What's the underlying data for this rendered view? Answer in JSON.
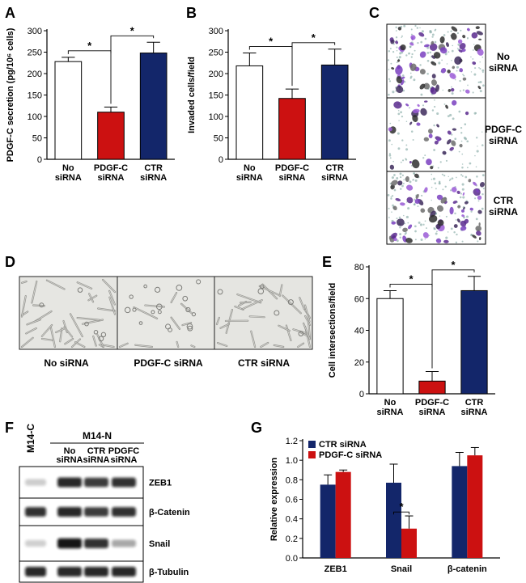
{
  "panel_letters": [
    "A",
    "B",
    "C",
    "D",
    "E",
    "F",
    "G"
  ],
  "colors": {
    "white": "#ffffff",
    "red": "#cc1111",
    "navy": "#13266a",
    "purple": "#7a3fc0",
    "blot": "#111111"
  },
  "panel_c": {
    "labels": [
      "No\nsiRNA",
      "PDGF-C\nsiRNA",
      "CTR\nsiRNA"
    ],
    "description_icon": "invasion-micrograph"
  },
  "panel_d": {
    "labels": [
      "No siRNA",
      "PDGF-C siRNA",
      "CTR siRNA"
    ],
    "description_icon": "tube-formation-micrograph"
  },
  "panel_f": {
    "control_lane": "M14-C",
    "group_label": "M14-N",
    "lane_labels": [
      "No\nsiRNA",
      "CTR\nsiRNA",
      "PDGFC\nsiRNA"
    ],
    "bands": [
      "ZEB1",
      "β-Catenin",
      "Snail",
      "β-Tubulin"
    ],
    "intensities": [
      [
        0.06,
        0.9,
        0.8,
        0.85
      ],
      [
        0.85,
        0.9,
        0.8,
        0.85
      ],
      [
        0.05,
        1.0,
        0.85,
        0.25
      ],
      [
        0.9,
        0.9,
        0.9,
        0.9
      ]
    ]
  },
  "chart_data": [
    {
      "id": "A",
      "type": "bar",
      "categories": [
        "No\nsiRNA",
        "PDGF-C\nsiRNA",
        "CTR\nsiRNA"
      ],
      "values": [
        228,
        110,
        248
      ],
      "errors": [
        10,
        12,
        25
      ],
      "colors": [
        "#ffffff",
        "#cc1111",
        "#13266a"
      ],
      "ylabel": "PDGF-C secretion (pg/10⁶ cells)",
      "ylim": [
        0,
        300
      ],
      "yticks": [
        0,
        50,
        100,
        150,
        200,
        250,
        300
      ],
      "significance": [
        {
          "from": 0,
          "to": 1,
          "label": "*"
        },
        {
          "from": 1,
          "to": 2,
          "label": "*"
        }
      ]
    },
    {
      "id": "B",
      "type": "bar",
      "categories": [
        "No\nsiRNA",
        "PDGF-C\nsiRNA",
        "CTR\nsiRNA"
      ],
      "values": [
        218,
        142,
        220
      ],
      "errors": [
        30,
        22,
        37
      ],
      "colors": [
        "#ffffff",
        "#cc1111",
        "#13266a"
      ],
      "ylabel": "Invaded cells/field",
      "ylim": [
        0,
        300
      ],
      "yticks": [
        0,
        50,
        100,
        150,
        200,
        250,
        300
      ],
      "significance": [
        {
          "from": 0,
          "to": 1,
          "label": "*"
        },
        {
          "from": 1,
          "to": 2,
          "label": "*"
        }
      ]
    },
    {
      "id": "E",
      "type": "bar",
      "categories": [
        "No\nsiRNA",
        "PDGF-C\nsiRNA",
        "CTR\nsiRNA"
      ],
      "values": [
        60,
        8,
        65
      ],
      "errors": [
        5,
        6,
        9
      ],
      "colors": [
        "#ffffff",
        "#cc1111",
        "#13266a"
      ],
      "ylabel": "Cell intersections/field",
      "ylim": [
        0,
        80
      ],
      "yticks": [
        0,
        20,
        40,
        60,
        80
      ],
      "significance": [
        {
          "from": 0,
          "to": 1,
          "label": "*"
        },
        {
          "from": 1,
          "to": 2,
          "label": "*"
        }
      ]
    },
    {
      "id": "G",
      "type": "bar",
      "categories": [
        "ZEB1",
        "Snail",
        "β-catenin"
      ],
      "series": [
        {
          "name": "CTR siRNA",
          "color": "#13266a",
          "values": [
            0.75,
            0.77,
            0.94
          ],
          "errors": [
            0.1,
            0.19,
            0.14
          ]
        },
        {
          "name": "PDGF-C siRNA",
          "color": "#cc1111",
          "values": [
            0.88,
            0.3,
            1.05
          ],
          "errors": [
            0.02,
            0.13,
            0.08
          ]
        }
      ],
      "ylabel": "Relative expression",
      "ylim": [
        0,
        1.2
      ],
      "yticks": [
        "0.0",
        "0.2",
        "0.4",
        "0.6",
        "0.8",
        "1.0",
        "1.2"
      ],
      "legend": "top-left",
      "significance": [
        {
          "category": 1,
          "label": "*"
        }
      ]
    }
  ]
}
